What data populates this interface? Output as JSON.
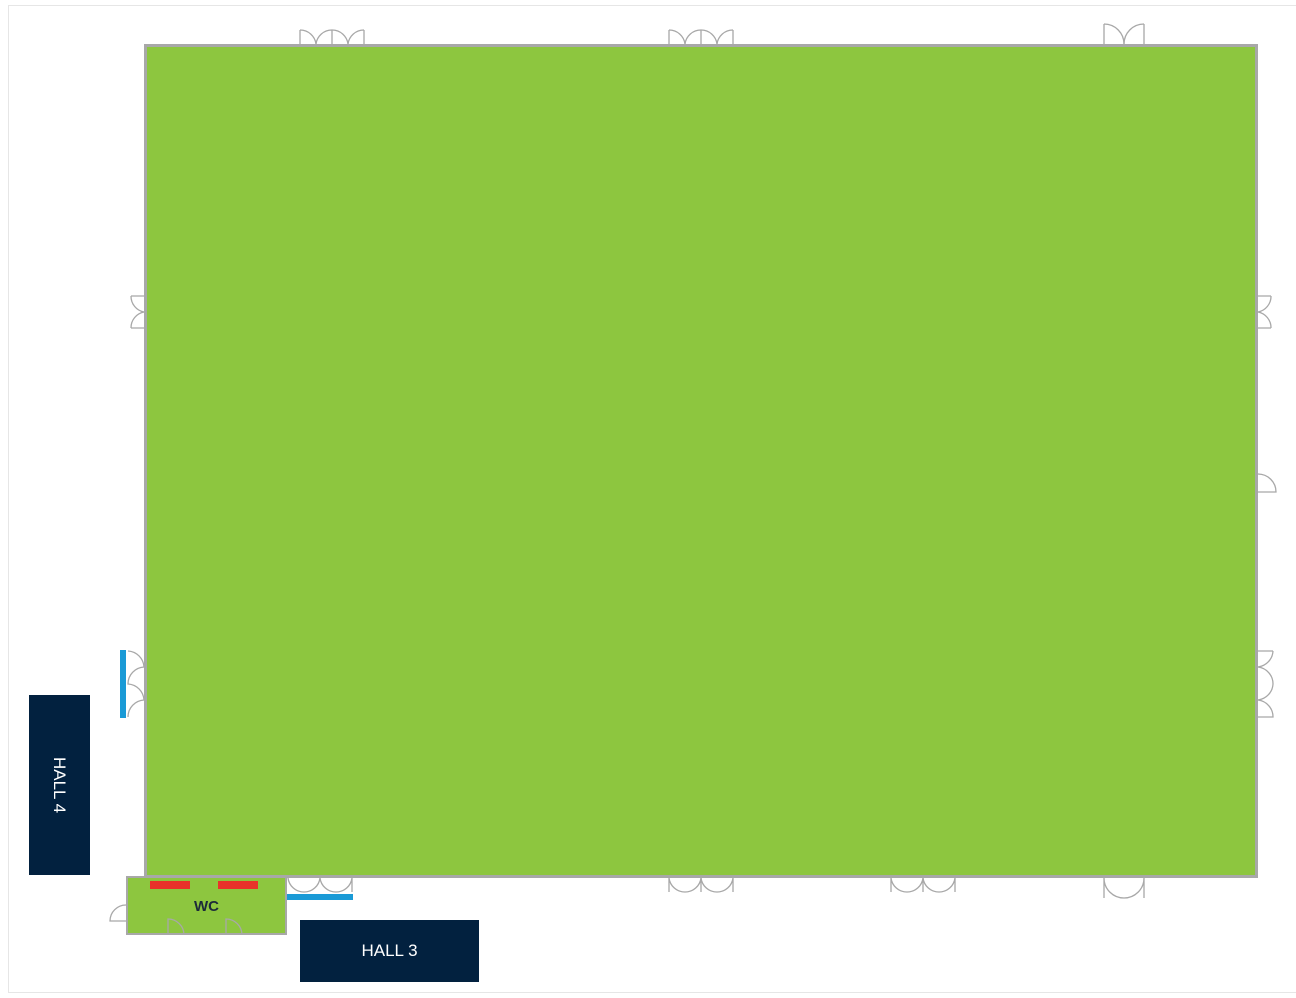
{
  "floorplan": {
    "rooms": {
      "wc": {
        "label": "WC"
      }
    },
    "halls": [
      {
        "id": "hall-4",
        "label": "HALL 4"
      },
      {
        "id": "hall-3",
        "label": "HALL 3"
      }
    ],
    "colors": {
      "floor": "#8dc63f",
      "wall": "#a8a8a8",
      "hall_box": "#02213f",
      "hall_text": "#ffffff",
      "access_marker": "#1a9ad6",
      "facility_marker": "#e8332a"
    }
  }
}
